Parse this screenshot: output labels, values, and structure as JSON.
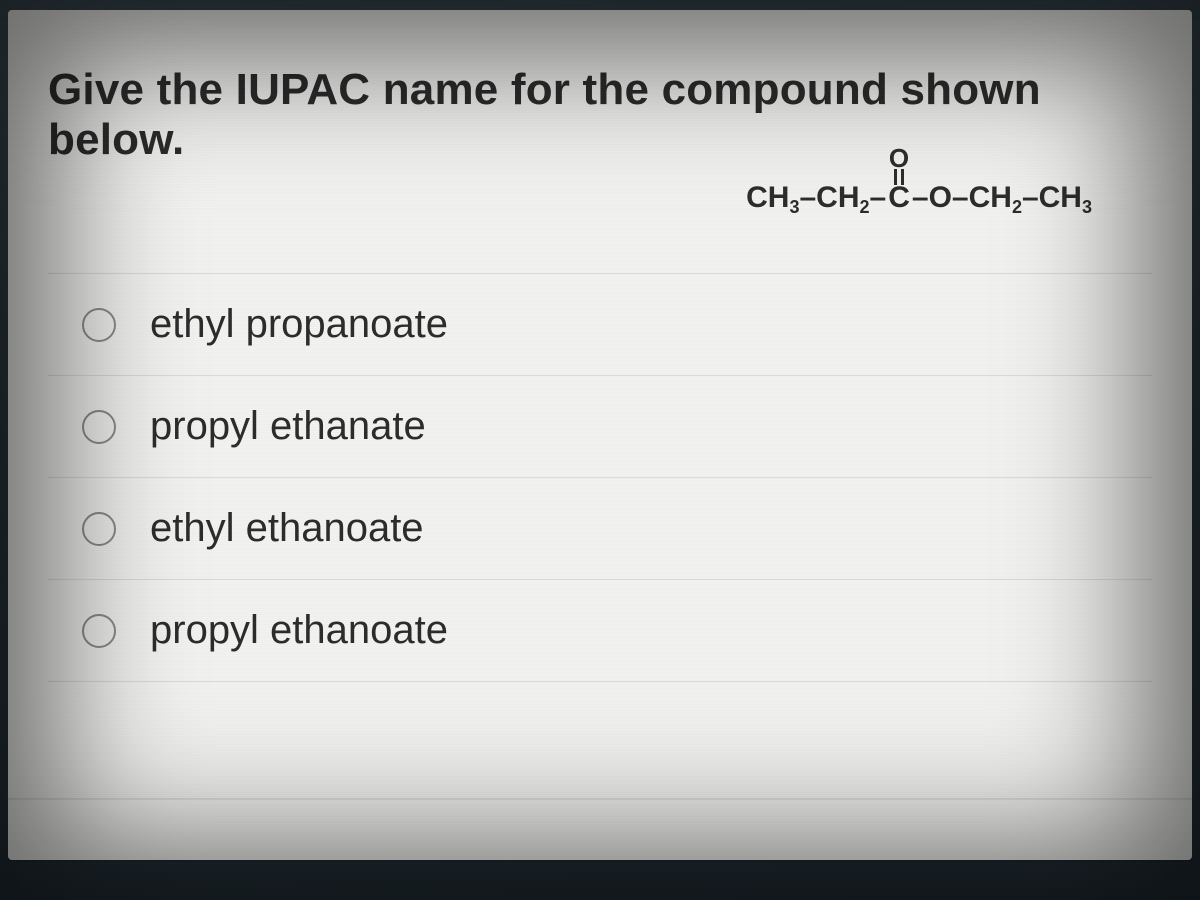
{
  "question": {
    "prompt": "Give the IUPAC name for the compound shown below.",
    "formula": {
      "left_chain1": "CH",
      "left_sub1": "3",
      "dash": "–",
      "left_chain2": "CH",
      "left_sub2": "2",
      "carbonyl_C": "C",
      "carbonyl_O": "O",
      "bridge_O": "O",
      "right_chain1": "CH",
      "right_sub1": "2",
      "right_chain2": "CH",
      "right_sub2": "3"
    }
  },
  "options": [
    {
      "label": "ethyl propanoate"
    },
    {
      "label": "propyl ethanate"
    },
    {
      "label": "ethyl ethanoate"
    },
    {
      "label": "propyl ethanoate"
    }
  ],
  "style": {
    "panel_bg": "#f2f2f0",
    "text_color": "#2b2b2b",
    "divider_color": "#d9d9d7",
    "radio_border": "#8b8b89"
  }
}
